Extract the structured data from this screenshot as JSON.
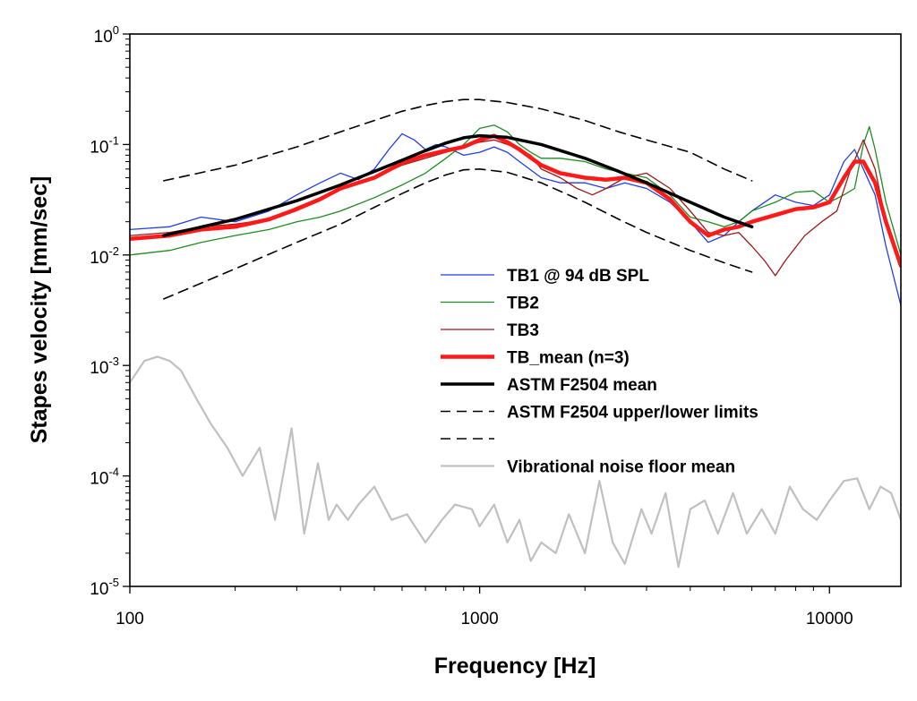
{
  "chart_data": {
    "type": "line",
    "title": "",
    "xlabel": "Frequency [Hz]",
    "ylabel": "Stapes velocity [mm/sec]",
    "xscale": "log",
    "yscale": "log",
    "xlim": [
      100,
      16000
    ],
    "ylim": [
      1e-05,
      1
    ],
    "xticks": [
      {
        "value": 100,
        "label": "100"
      },
      {
        "value": 1000,
        "label": "1000"
      },
      {
        "value": 10000,
        "label": "10000"
      }
    ],
    "yticks": [
      {
        "value": 1,
        "base": "10",
        "exp": "0"
      },
      {
        "value": 0.1,
        "base": "10",
        "exp": "-1"
      },
      {
        "value": 0.01,
        "base": "10",
        "exp": "-2"
      },
      {
        "value": 0.001,
        "base": "10",
        "exp": "-3"
      },
      {
        "value": 0.0001,
        "base": "10",
        "exp": "-4"
      },
      {
        "value": 1e-05,
        "base": "10",
        "exp": "-5"
      }
    ],
    "legend_position": "lower-right",
    "series": [
      {
        "name": "TB1 @ 94 dB SPL",
        "color": "#1f3fe6",
        "width": 1.3,
        "dash": "",
        "x": [
          100,
          130,
          160,
          200,
          250,
          300,
          350,
          400,
          450,
          500,
          550,
          600,
          650,
          700,
          750,
          800,
          900,
          1000,
          1100,
          1200,
          1300,
          1500,
          1700,
          2000,
          2300,
          2600,
          3000,
          3500,
          4000,
          4500,
          5000,
          5500,
          6000,
          7000,
          8000,
          9000,
          10000,
          11000,
          11800,
          12500,
          13500,
          14500,
          16000
        ],
        "y": [
          0.017,
          0.018,
          0.022,
          0.02,
          0.025,
          0.035,
          0.045,
          0.055,
          0.048,
          0.06,
          0.09,
          0.125,
          0.11,
          0.09,
          0.1,
          0.095,
          0.08,
          0.085,
          0.095,
          0.085,
          0.07,
          0.05,
          0.045,
          0.045,
          0.04,
          0.045,
          0.04,
          0.03,
          0.02,
          0.013,
          0.015,
          0.02,
          0.025,
          0.035,
          0.03,
          0.028,
          0.035,
          0.07,
          0.09,
          0.06,
          0.035,
          0.012,
          0.0035
        ]
      },
      {
        "name": "TB2",
        "color": "#1e8c1e",
        "width": 1.3,
        "dash": "",
        "x": [
          100,
          130,
          160,
          200,
          250,
          300,
          350,
          400,
          500,
          600,
          700,
          800,
          900,
          1000,
          1100,
          1200,
          1300,
          1400,
          1500,
          1700,
          2000,
          2300,
          2600,
          3000,
          3500,
          4000,
          4500,
          5000,
          5500,
          6000,
          7000,
          8000,
          9000,
          10000,
          11000,
          11800,
          12500,
          13000,
          13500,
          14500,
          16000
        ],
        "y": [
          0.01,
          0.011,
          0.013,
          0.015,
          0.017,
          0.02,
          0.022,
          0.025,
          0.033,
          0.043,
          0.055,
          0.075,
          0.1,
          0.14,
          0.15,
          0.13,
          0.1,
          0.085,
          0.075,
          0.075,
          0.07,
          0.06,
          0.055,
          0.05,
          0.035,
          0.022,
          0.02,
          0.018,
          0.02,
          0.025,
          0.03,
          0.037,
          0.038,
          0.03,
          0.035,
          0.04,
          0.1,
          0.145,
          0.09,
          0.03,
          0.01
        ]
      },
      {
        "name": "TB3",
        "color": "#a01818",
        "width": 1.3,
        "dash": "",
        "x": [
          100,
          130,
          160,
          200,
          250,
          300,
          350,
          400,
          500,
          600,
          700,
          800,
          900,
          1000,
          1100,
          1200,
          1300,
          1400,
          1500,
          1700,
          1900,
          2100,
          2300,
          2600,
          3000,
          3500,
          4000,
          4500,
          5000,
          5500,
          6000,
          6500,
          7000,
          7500,
          8500,
          9500,
          10500,
          11500,
          12500,
          13500,
          14500,
          16000
        ],
        "y": [
          0.015,
          0.016,
          0.018,
          0.019,
          0.021,
          0.027,
          0.033,
          0.04,
          0.05,
          0.065,
          0.075,
          0.085,
          0.095,
          0.105,
          0.11,
          0.1,
          0.09,
          0.08,
          0.06,
          0.05,
          0.04,
          0.035,
          0.04,
          0.05,
          0.055,
          0.04,
          0.025,
          0.016,
          0.015,
          0.016,
          0.012,
          0.009,
          0.0065,
          0.009,
          0.015,
          0.02,
          0.025,
          0.06,
          0.11,
          0.06,
          0.02,
          0.008
        ]
      },
      {
        "name": "TB_mean (n=3)",
        "color": "#ff1a1a",
        "width": 4.5,
        "dash": "",
        "x": [
          100,
          130,
          160,
          200,
          250,
          300,
          350,
          400,
          500,
          600,
          700,
          800,
          900,
          1000,
          1100,
          1200,
          1300,
          1500,
          1700,
          2000,
          2300,
          2600,
          3000,
          3500,
          4000,
          4500,
          5000,
          5500,
          6000,
          7000,
          8000,
          9000,
          10000,
          11000,
          11800,
          12500,
          13500,
          14500,
          16000
        ],
        "y": [
          0.014,
          0.015,
          0.017,
          0.018,
          0.021,
          0.026,
          0.032,
          0.04,
          0.05,
          0.068,
          0.08,
          0.088,
          0.095,
          0.11,
          0.12,
          0.105,
          0.09,
          0.065,
          0.055,
          0.05,
          0.048,
          0.05,
          0.045,
          0.032,
          0.02,
          0.015,
          0.017,
          0.018,
          0.02,
          0.023,
          0.026,
          0.027,
          0.03,
          0.05,
          0.07,
          0.07,
          0.045,
          0.02,
          0.008
        ]
      },
      {
        "name": "ASTM F2504 mean",
        "color": "#000000",
        "width": 3.5,
        "dash": "",
        "x": [
          125,
          200,
          300,
          400,
          500,
          600,
          700,
          800,
          900,
          1000,
          1200,
          1500,
          2000,
          2500,
          3000,
          4000,
          5000,
          6000
        ],
        "y": [
          0.015,
          0.021,
          0.031,
          0.043,
          0.057,
          0.072,
          0.088,
          0.103,
          0.115,
          0.12,
          0.116,
          0.1,
          0.075,
          0.057,
          0.045,
          0.03,
          0.022,
          0.018
        ]
      },
      {
        "name": "ASTM F2504 upper/lower limits",
        "color": "#000000",
        "width": 1.6,
        "dash": "11,7",
        "x": [
          125,
          200,
          300,
          400,
          500,
          600,
          700,
          800,
          900,
          1000,
          1200,
          1500,
          2000,
          2500,
          3000,
          4000,
          5000,
          6000
        ],
        "y": [
          0.047,
          0.065,
          0.095,
          0.13,
          0.165,
          0.2,
          0.225,
          0.245,
          0.255,
          0.255,
          0.24,
          0.21,
          0.165,
          0.13,
          0.11,
          0.085,
          0.06,
          0.047
        ]
      },
      {
        "name": "",
        "color": "#000000",
        "width": 1.6,
        "dash": "11,7",
        "x": [
          125,
          200,
          300,
          400,
          500,
          600,
          700,
          800,
          900,
          1000,
          1200,
          1500,
          2000,
          2500,
          3000,
          4000,
          5000,
          6000
        ],
        "y": [
          0.004,
          0.0075,
          0.013,
          0.019,
          0.027,
          0.036,
          0.045,
          0.053,
          0.059,
          0.06,
          0.056,
          0.045,
          0.03,
          0.021,
          0.016,
          0.011,
          0.0085,
          0.007
        ]
      },
      {
        "name": "Vibrational noise floor mean",
        "color": "#c0c0c0",
        "width": 2.2,
        "dash": "",
        "x": [
          100,
          110,
          120,
          130,
          140,
          155,
          170,
          190,
          210,
          235,
          260,
          290,
          315,
          345,
          370,
          390,
          420,
          450,
          500,
          560,
          620,
          700,
          780,
          850,
          950,
          1000,
          1100,
          1200,
          1300,
          1400,
          1500,
          1650,
          1800,
          2000,
          2200,
          2400,
          2600,
          2900,
          3100,
          3400,
          3700,
          4000,
          4400,
          4800,
          5300,
          5800,
          6400,
          7000,
          7700,
          8400,
          9200,
          10000,
          11000,
          12000,
          13000,
          14000,
          15000,
          16000
        ],
        "y": [
          0.0007,
          0.0011,
          0.0012,
          0.0011,
          0.0009,
          0.0005,
          0.0003,
          0.00018,
          0.0001,
          0.00018,
          4e-05,
          0.00027,
          3e-05,
          0.00013,
          4e-05,
          5.5e-05,
          4e-05,
          5.5e-05,
          8e-05,
          4e-05,
          4.5e-05,
          2.5e-05,
          4e-05,
          5.5e-05,
          5e-05,
          3.5e-05,
          5.5e-05,
          2.5e-05,
          4e-05,
          1.7e-05,
          2.5e-05,
          2e-05,
          4.5e-05,
          2e-05,
          9e-05,
          2.5e-05,
          1.6e-05,
          5e-05,
          3e-05,
          7e-05,
          1.5e-05,
          5e-05,
          6e-05,
          3e-05,
          7e-05,
          3e-05,
          5e-05,
          3e-05,
          8e-05,
          5e-05,
          4e-05,
          6e-05,
          9e-05,
          9.5e-05,
          5e-05,
          8e-05,
          7e-05,
          4e-05
        ]
      }
    ]
  }
}
